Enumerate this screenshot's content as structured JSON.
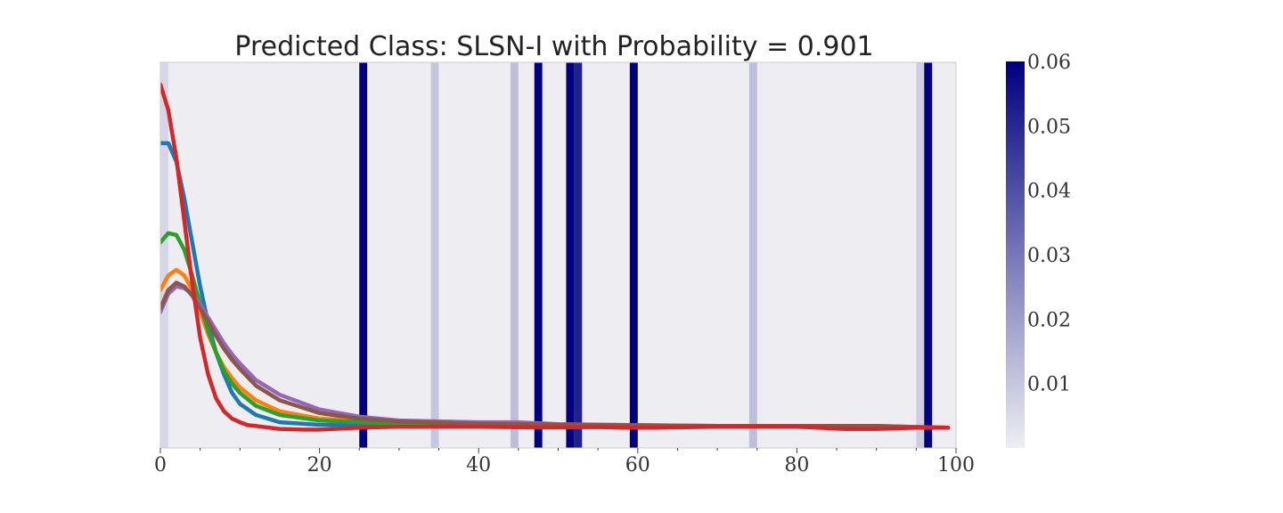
{
  "chart_data": {
    "type": "line",
    "title": "Predicted Class: SLSN-I with Probability = 0.901",
    "xlabel": "",
    "ylabel": "",
    "xlim": [
      0,
      100
    ],
    "x_ticks": [
      "0",
      "20",
      "40",
      "60",
      "80",
      "100"
    ],
    "x_tick_values": [
      0,
      20,
      40,
      60,
      80,
      100
    ],
    "x_minor_ticks": [
      5,
      10,
      15,
      25,
      30,
      35,
      45,
      50,
      55,
      65,
      70,
      75,
      85,
      90,
      95
    ],
    "ylim": [
      0,
      1.05
    ],
    "grid": false,
    "legend": "none",
    "plot_background": "#eeeef2",
    "attention": {
      "description": "",
      "bands": [
        {
          "x0": 0.0,
          "x1": 1.0,
          "value": 0.006
        },
        {
          "x0": 25.0,
          "x1": 26.0,
          "value": 0.06
        },
        {
          "x0": 34.0,
          "x1": 35.0,
          "value": 0.01
        },
        {
          "x0": 44.0,
          "x1": 45.0,
          "value": 0.012
        },
        {
          "x0": 47.0,
          "x1": 48.0,
          "value": 0.06
        },
        {
          "x0": 51.0,
          "x1": 52.0,
          "value": 0.06
        },
        {
          "x0": 52.0,
          "x1": 53.0,
          "value": 0.052
        },
        {
          "x0": 59.0,
          "x1": 60.0,
          "value": 0.06
        },
        {
          "x0": 74.0,
          "x1": 75.0,
          "value": 0.012
        },
        {
          "x0": 95.0,
          "x1": 96.0,
          "value": 0.008
        },
        {
          "x0": 96.0,
          "x1": 97.0,
          "value": 0.06
        }
      ]
    },
    "colorbar": {
      "min": 0.0,
      "max": 0.06,
      "ticks": [
        "0.01",
        "0.02",
        "0.03",
        "0.04",
        "0.05",
        "0.06"
      ],
      "tick_values": [
        0.01,
        0.02,
        0.03,
        0.04,
        0.05,
        0.06
      ],
      "color_low": "#eeeef2",
      "color_high": "#000080"
    },
    "series": [
      {
        "color": "#1f77b4",
        "points": [
          [
            0,
            0.83
          ],
          [
            1,
            0.83
          ],
          [
            2,
            0.78
          ],
          [
            3,
            0.68
          ],
          [
            4,
            0.56
          ],
          [
            5,
            0.44
          ],
          [
            6,
            0.34
          ],
          [
            7,
            0.26
          ],
          [
            8,
            0.2
          ],
          [
            9,
            0.15
          ],
          [
            10,
            0.12
          ],
          [
            12,
            0.09
          ],
          [
            15,
            0.07
          ],
          [
            20,
            0.063
          ],
          [
            30,
            0.062
          ],
          [
            40,
            0.062
          ],
          [
            50,
            0.061
          ],
          [
            60,
            0.06
          ],
          [
            70,
            0.06
          ],
          [
            80,
            0.06
          ],
          [
            90,
            0.058
          ],
          [
            99,
            0.055
          ]
        ]
      },
      {
        "color": "#ff7f0e",
        "points": [
          [
            0,
            0.43
          ],
          [
            1,
            0.47
          ],
          [
            2,
            0.485
          ],
          [
            3,
            0.47
          ],
          [
            4,
            0.43
          ],
          [
            5,
            0.37
          ],
          [
            6,
            0.31
          ],
          [
            7,
            0.26
          ],
          [
            8,
            0.22
          ],
          [
            9,
            0.19
          ],
          [
            10,
            0.165
          ],
          [
            12,
            0.13
          ],
          [
            15,
            0.1
          ],
          [
            20,
            0.08
          ],
          [
            30,
            0.068
          ],
          [
            40,
            0.064
          ],
          [
            50,
            0.062
          ],
          [
            60,
            0.06
          ],
          [
            70,
            0.06
          ],
          [
            80,
            0.06
          ],
          [
            90,
            0.058
          ],
          [
            99,
            0.055
          ]
        ]
      },
      {
        "color": "#2ca02c",
        "points": [
          [
            0,
            0.56
          ],
          [
            1,
            0.585
          ],
          [
            2,
            0.58
          ],
          [
            3,
            0.54
          ],
          [
            4,
            0.47
          ],
          [
            5,
            0.39
          ],
          [
            6,
            0.32
          ],
          [
            7,
            0.26
          ],
          [
            8,
            0.21
          ],
          [
            9,
            0.175
          ],
          [
            10,
            0.15
          ],
          [
            12,
            0.115
          ],
          [
            15,
            0.09
          ],
          [
            20,
            0.075
          ],
          [
            30,
            0.066
          ],
          [
            40,
            0.063
          ],
          [
            50,
            0.062
          ],
          [
            60,
            0.06
          ],
          [
            70,
            0.06
          ],
          [
            80,
            0.06
          ],
          [
            90,
            0.058
          ],
          [
            99,
            0.055
          ]
        ]
      },
      {
        "color": "#9467bd",
        "points": [
          [
            0,
            0.37
          ],
          [
            1,
            0.42
          ],
          [
            2,
            0.44
          ],
          [
            3,
            0.435
          ],
          [
            4,
            0.42
          ],
          [
            5,
            0.39
          ],
          [
            6,
            0.355
          ],
          [
            7,
            0.32
          ],
          [
            8,
            0.285
          ],
          [
            9,
            0.255
          ],
          [
            10,
            0.23
          ],
          [
            12,
            0.185
          ],
          [
            15,
            0.145
          ],
          [
            20,
            0.105
          ],
          [
            25,
            0.085
          ],
          [
            30,
            0.075
          ],
          [
            40,
            0.07
          ],
          [
            45,
            0.07
          ],
          [
            50,
            0.065
          ],
          [
            60,
            0.062
          ],
          [
            70,
            0.06
          ],
          [
            80,
            0.06
          ],
          [
            90,
            0.06
          ],
          [
            99,
            0.055
          ]
        ]
      },
      {
        "color": "#8c564b",
        "points": [
          [
            0,
            0.38
          ],
          [
            1,
            0.43
          ],
          [
            2,
            0.45
          ],
          [
            3,
            0.44
          ],
          [
            4,
            0.415
          ],
          [
            5,
            0.38
          ],
          [
            6,
            0.345
          ],
          [
            7,
            0.305
          ],
          [
            8,
            0.27
          ],
          [
            9,
            0.24
          ],
          [
            10,
            0.215
          ],
          [
            12,
            0.17
          ],
          [
            15,
            0.13
          ],
          [
            20,
            0.095
          ],
          [
            25,
            0.08
          ],
          [
            30,
            0.072
          ],
          [
            40,
            0.066
          ],
          [
            50,
            0.064
          ],
          [
            60,
            0.062
          ],
          [
            70,
            0.06
          ],
          [
            80,
            0.06
          ],
          [
            90,
            0.06
          ],
          [
            99,
            0.055
          ]
        ]
      },
      {
        "color": "#d62728",
        "points": [
          [
            0,
            0.99
          ],
          [
            1,
            0.92
          ],
          [
            2,
            0.79
          ],
          [
            3,
            0.62
          ],
          [
            4,
            0.45
          ],
          [
            5,
            0.3
          ],
          [
            6,
            0.2
          ],
          [
            7,
            0.135
          ],
          [
            8,
            0.1
          ],
          [
            9,
            0.08
          ],
          [
            10,
            0.07
          ],
          [
            11,
            0.062
          ],
          [
            12,
            0.06
          ],
          [
            15,
            0.052
          ],
          [
            18,
            0.05
          ],
          [
            20,
            0.05
          ],
          [
            25,
            0.055
          ],
          [
            30,
            0.058
          ],
          [
            40,
            0.058
          ],
          [
            46,
            0.056
          ],
          [
            50,
            0.056
          ],
          [
            55,
            0.057
          ],
          [
            58,
            0.055
          ],
          [
            62,
            0.055
          ],
          [
            70,
            0.058
          ],
          [
            80,
            0.058
          ],
          [
            86,
            0.052
          ],
          [
            90,
            0.052
          ],
          [
            95,
            0.055
          ],
          [
            99,
            0.055
          ]
        ]
      }
    ]
  }
}
